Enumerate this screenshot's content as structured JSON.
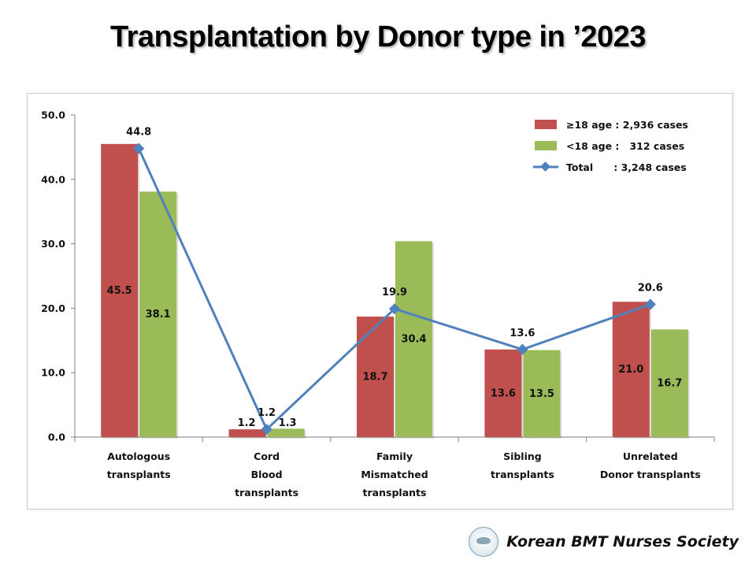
{
  "page": {
    "title": "Transplantation by Donor type in ’2023",
    "footer": "Korean BMT Nurses Society"
  },
  "chart_data": {
    "type": "bar",
    "categories": [
      [
        "Autologous",
        "transplants"
      ],
      [
        "Cord",
        "Blood",
        "transplants"
      ],
      [
        "Family",
        "Mismatched",
        "transplants"
      ],
      [
        "Sibling",
        "transplants"
      ],
      [
        "Unrelated",
        "Donor transplants"
      ]
    ],
    "series": [
      {
        "name": "≥18 age : 2,936 cases",
        "kind": "bar",
        "color": "#c0504d",
        "values": [
          45.5,
          1.2,
          18.7,
          13.6,
          21.0
        ],
        "labels": [
          "45.5",
          "1.2",
          "18.7",
          "13.6",
          "21.0"
        ]
      },
      {
        "name": "<18 age :   312 cases",
        "kind": "bar",
        "color": "#9bbb59",
        "values": [
          38.1,
          1.3,
          30.4,
          13.5,
          16.7
        ],
        "labels": [
          "38.1",
          "1.3",
          "30.4",
          "13.5",
          "16.7"
        ]
      },
      {
        "name": "Total      : 3,248 cases",
        "kind": "line",
        "color": "#4f81bd",
        "values": [
          44.8,
          1.2,
          19.9,
          13.6,
          20.6
        ],
        "labels": [
          "44.8",
          "1.2",
          "19.9",
          "13.6",
          "20.6"
        ]
      }
    ],
    "y_ticks": [
      "0.0",
      "10.0",
      "20.0",
      "30.0",
      "40.0",
      "50.0"
    ],
    "ylim": [
      0,
      50
    ],
    "grid": false,
    "legend_position": "top-right",
    "title": "Transplantation by Donor type in ’2023",
    "xlabel": "",
    "ylabel": ""
  }
}
